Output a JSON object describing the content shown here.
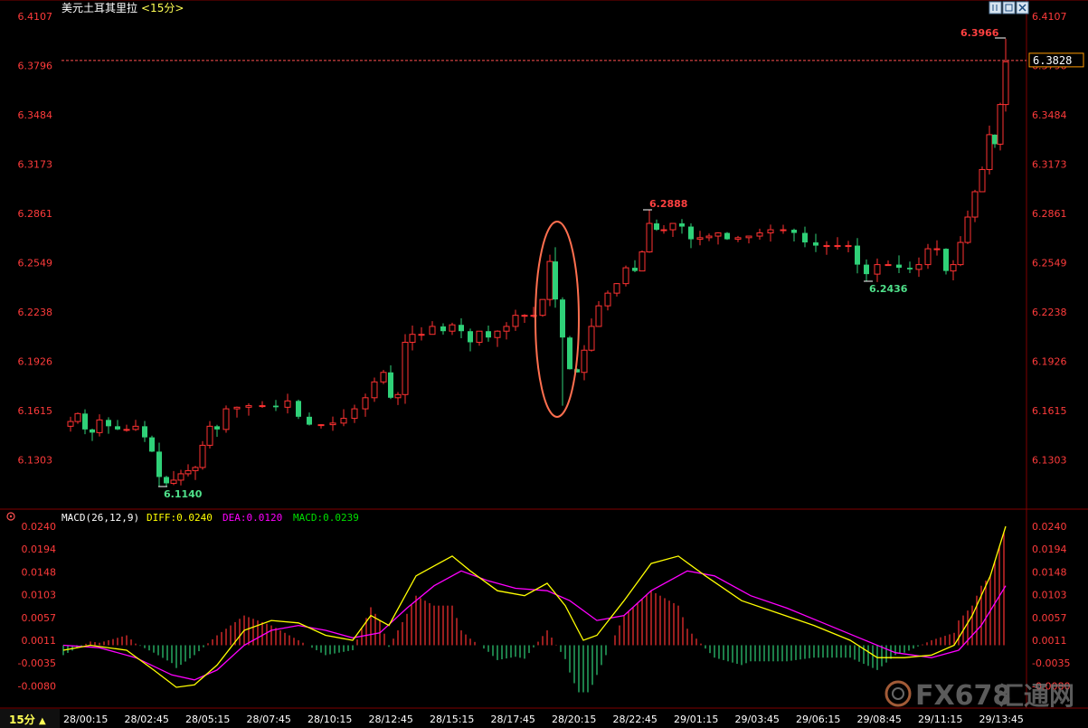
{
  "header": {
    "title": "美元土耳其里拉",
    "period_label": "<15分>"
  },
  "toolbar": {
    "button_icons": [
      "chart-mode-icon",
      "zoom-icon",
      "close-icon"
    ]
  },
  "price_panel": {
    "axis_ticks": [
      "6.4107",
      "6.3796",
      "6.3484",
      "6.3173",
      "6.2861",
      "6.2549",
      "6.2238",
      "6.1926",
      "6.1615",
      "6.1303"
    ],
    "current_price": "6.3828",
    "annotations": {
      "high": "6.3966",
      "mid_high": "6.2888",
      "mid_low": "6.2436",
      "low": "6.1140"
    }
  },
  "macd_panel": {
    "label": "MACD(26,12,9)",
    "diff_label": "DIFF:0.0240",
    "dea_label": "DEA:0.0120",
    "macd_label": "MACD:0.0239",
    "axis_ticks": [
      "0.0240",
      "0.0194",
      "0.0148",
      "0.0103",
      "0.0057",
      "0.0011",
      "-0.0035",
      "-0.0080"
    ]
  },
  "time_axis": {
    "period_button": "15分",
    "labels": [
      "28/00:15",
      "28/02:45",
      "28/05:15",
      "28/07:45",
      "28/10:15",
      "28/12:45",
      "28/15:15",
      "28/17:45",
      "28/20:15",
      "28/22:45",
      "29/01:15",
      "29/03:45",
      "29/06:15",
      "29/08:45",
      "29/11:15",
      "29/13:45"
    ]
  },
  "watermark": {
    "text": "FX678",
    "cn": "汇通网"
  },
  "colors": {
    "up": "#ff3232",
    "down": "#54fcfc",
    "down_fill": "#2fd178",
    "diff_line": "#ffff00",
    "dea_line": "#ff00ff",
    "macd_label": "#00e000",
    "grid": "#7f0000",
    "axis_text": "#ff3b3b",
    "header_text": "#ffffff",
    "period_text": "#ffff55",
    "ellipse": "#ff6f4f"
  },
  "chart_data": [
    {
      "type": "candlestick",
      "title": "美元土耳其里拉",
      "interval": "15分",
      "ylim": [
        6.114,
        6.4107
      ],
      "x_labels": [
        "28/00:15",
        "28/02:45",
        "28/05:15",
        "28/07:45",
        "28/10:15",
        "28/12:45",
        "28/15:15",
        "28/17:45",
        "28/20:15",
        "28/22:45",
        "29/01:15",
        "29/03:45",
        "29/06:15",
        "29/08:45",
        "29/11:15",
        "29/13:45"
      ],
      "ohlc_keypoints": [
        {
          "label": "start",
          "close": 6.152
        },
        {
          "label": "low",
          "close": 6.114
        },
        {
          "label": "28/12:45",
          "close": 6.205
        },
        {
          "label": "28/15:15",
          "close": 6.215
        },
        {
          "label": "28/20:15 spike",
          "high": 6.265,
          "low": 6.165
        },
        {
          "label": "high1",
          "high": 6.2888
        },
        {
          "label": "low2",
          "low": 6.2436
        },
        {
          "label": "high",
          "high": 6.3966
        },
        {
          "label": "last",
          "close": 6.3828
        }
      ],
      "last_price": 6.3828,
      "annotated_high": 6.3966,
      "annotated_low": 6.114
    },
    {
      "type": "line",
      "title": "MACD(26,12,9)",
      "ylim": [
        -0.008,
        0.024
      ],
      "series": [
        {
          "name": "DIFF",
          "last": 0.024
        },
        {
          "name": "DEA",
          "last": 0.012
        },
        {
          "name": "MACD",
          "last": 0.0239
        }
      ]
    }
  ]
}
